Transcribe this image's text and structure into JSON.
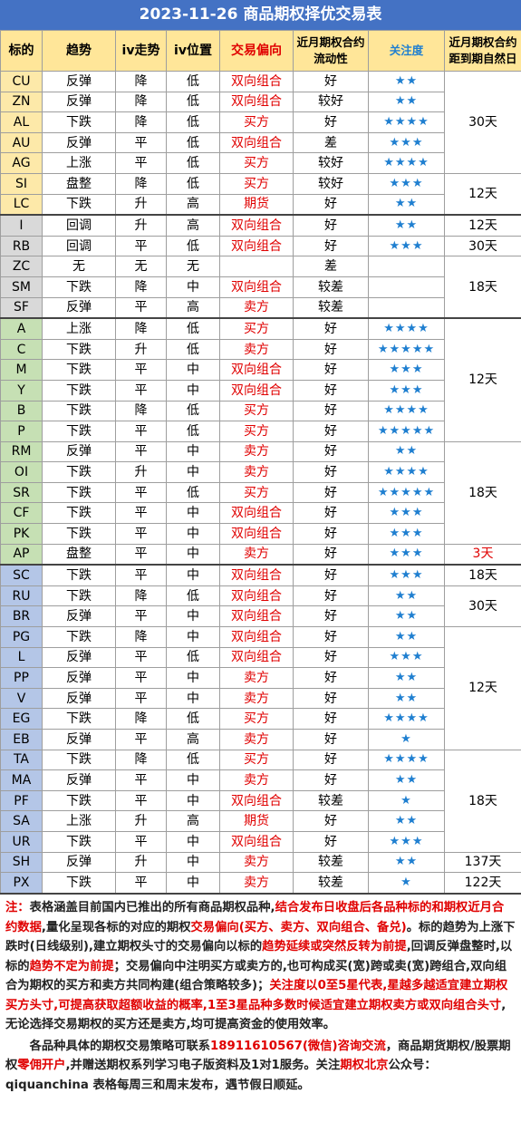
{
  "header": {
    "title": "2023-11-26 商品期权择优交易表"
  },
  "table": {
    "columns": [
      "标的",
      "趋势",
      "iv走势",
      "iv位置",
      "交易偏向",
      "近月期权合约流动性",
      "关注度",
      "近月期权合约距到期自然日"
    ],
    "sections": [
      {
        "color": "#fde9a9",
        "rows": [
          [
            "CU",
            "反弹",
            "降",
            "低",
            "双向组合",
            "好",
            "★★",
            "30天"
          ],
          [
            "ZN",
            "反弹",
            "降",
            "低",
            "双向组合",
            "较好",
            "★★",
            null
          ],
          [
            "AL",
            "下跌",
            "降",
            "低",
            "买方",
            "好",
            "★★★★",
            null
          ],
          [
            "AU",
            "反弹",
            "平",
            "低",
            "双向组合",
            "差",
            "★★★",
            null
          ],
          [
            "AG",
            "上涨",
            "平",
            "低",
            "买方",
            "较好",
            "★★★★",
            null
          ],
          [
            "SI",
            "盘整",
            "降",
            "低",
            "买方",
            "较好",
            "★★★",
            "12天"
          ],
          [
            "LC",
            "下跌",
            "升",
            "高",
            "期货",
            "好",
            "★★",
            null
          ]
        ]
      },
      {
        "color": "#d9d9d9",
        "rows": [
          [
            "I",
            "回调",
            "升",
            "高",
            "双向组合",
            "好",
            "★★",
            "12天"
          ],
          [
            "RB",
            "回调",
            "平",
            "低",
            "双向组合",
            "好",
            "★★★",
            "30天"
          ],
          [
            "ZC",
            "无",
            "无",
            "无",
            null,
            "差",
            null,
            "18天"
          ],
          [
            "SM",
            "下跌",
            "降",
            "中",
            "双向组合",
            "较差",
            null,
            null
          ],
          [
            "SF",
            "反弹",
            "平",
            "高",
            "卖方",
            "较差",
            null,
            null
          ]
        ]
      },
      {
        "color": "#c6e0b4",
        "rows": [
          [
            "A",
            "上涨",
            "降",
            "低",
            "买方",
            "好",
            "★★★★",
            "12天"
          ],
          [
            "C",
            "下跌",
            "升",
            "低",
            "卖方",
            "好",
            "★★★★★",
            null
          ],
          [
            "M",
            "下跌",
            "平",
            "中",
            "双向组合",
            "好",
            "★★★",
            null
          ],
          [
            "Y",
            "下跌",
            "平",
            "中",
            "双向组合",
            "好",
            "★★★",
            null
          ],
          [
            "B",
            "下跌",
            "降",
            "低",
            "买方",
            "好",
            "★★★★",
            null
          ],
          [
            "P",
            "下跌",
            "平",
            "低",
            "买方",
            "好",
            "★★★★★",
            null
          ],
          [
            "RM",
            "反弹",
            "平",
            "中",
            "卖方",
            "好",
            "★★",
            "18天"
          ],
          [
            "OI",
            "下跌",
            "升",
            "中",
            "卖方",
            "好",
            "★★★★",
            null
          ],
          [
            "SR",
            "下跌",
            "平",
            "低",
            "买方",
            "好",
            "★★★★★",
            null
          ],
          [
            "CF",
            "下跌",
            "平",
            "中",
            "双向组合",
            "好",
            "★★★",
            null
          ],
          [
            "PK",
            "下跌",
            "平",
            "中",
            "双向组合",
            "好",
            "★★★",
            null
          ],
          [
            "AP",
            "盘整",
            "平",
            "中",
            "卖方",
            "好",
            "★★★",
            {
              "text": "3天",
              "color": "#e00000"
            }
          ]
        ]
      },
      {
        "color": "#b4c6e7",
        "rows": [
          [
            "SC",
            "下跌",
            "平",
            "中",
            "双向组合",
            "好",
            "★★★",
            "18天"
          ],
          [
            "RU",
            "下跌",
            "降",
            "低",
            "双向组合",
            "好",
            "★★",
            "30天"
          ],
          [
            "BR",
            "反弹",
            "平",
            "中",
            "双向组合",
            "好",
            "★★",
            null
          ],
          [
            "PG",
            "下跌",
            "降",
            "中",
            "双向组合",
            "好",
            "★★",
            "12天"
          ],
          [
            "L",
            "反弹",
            "平",
            "低",
            "双向组合",
            "好",
            "★★★",
            null
          ],
          [
            "PP",
            "反弹",
            "平",
            "中",
            "卖方",
            "好",
            "★★",
            null
          ],
          [
            "V",
            "反弹",
            "平",
            "中",
            "卖方",
            "好",
            "★★",
            null
          ],
          [
            "EG",
            "下跌",
            "降",
            "低",
            "买方",
            "好",
            "★★★★",
            null
          ],
          [
            "EB",
            "反弹",
            "平",
            "高",
            "卖方",
            "好",
            "★",
            null
          ],
          [
            "TA",
            "下跌",
            "降",
            "低",
            "买方",
            "好",
            "★★★★",
            "18天"
          ],
          [
            "MA",
            "反弹",
            "平",
            "中",
            "卖方",
            "好",
            "★★",
            null
          ],
          [
            "PF",
            "下跌",
            "平",
            "中",
            "双向组合",
            "较差",
            "★",
            null
          ],
          [
            "SA",
            "上涨",
            "升",
            "高",
            "期货",
            "好",
            "★★",
            null
          ],
          [
            "UR",
            "下跌",
            "平",
            "中",
            "双向组合",
            "好",
            "★★★",
            null
          ],
          [
            "SH",
            "反弹",
            "升",
            "中",
            "卖方",
            "较差",
            "★★",
            "137天"
          ],
          [
            "PX",
            "下跌",
            "平",
            "中",
            "卖方",
            "较差",
            "★",
            "122天"
          ]
        ]
      }
    ]
  },
  "notes": [
    [
      {
        "text": "注：",
        "color": "#e00000"
      },
      {
        "text": "表格涵盖目前国内已推出的所有商品期权品种,"
      },
      {
        "text": "结合发布日收盘后各品种标的和期权近月合约数据",
        "color": "#e00000"
      },
      {
        "text": ",量化呈现各标的对应的期权"
      },
      {
        "text": "交易偏向(买方、卖方、双向组合、备兑)",
        "color": "#e00000"
      },
      {
        "text": "。标的趋势为上涨下跌时(日线级别),建立期权头寸的交易偏向以标的"
      },
      {
        "text": "趋势延续或突然反转为前提",
        "color": "#e00000"
      },
      {
        "text": ",回调反弹盘整时,以标的"
      },
      {
        "text": "趋势不定为前提",
        "color": "#e00000"
      },
      {
        "text": "；交易偏向中注明买方或卖方的,也可构成买(宽)跨或卖(宽)跨组合,双向组合为期权的买方和卖方共同构建(组合策略较多)；"
      },
      {
        "text": "关注度以0至5星代表,星越多越适宜建立期权买方头寸,可提高获取超额收益的概率,1至3星品种多数时候适宜建立期权卖方或双向组合头寸",
        "color": "#e00000"
      },
      {
        "text": ",无论选择交易期权的买方还是卖方,均可提高资金的使用效率。"
      }
    ],
    [
      {
        "text": "各品种具体的期权交易策略可联系"
      },
      {
        "text": "18911610567(微信)咨询交流",
        "color": "#e00000"
      },
      {
        "text": "，商品期货期权/股票期权"
      },
      {
        "text": "零佣开户",
        "color": "#e00000"
      },
      {
        "text": ",并赠送期权系列学习电子版资料及1对1服务。关注"
      },
      {
        "text": "期权北京",
        "color": "#e00000"
      },
      {
        "text": "公众号：qiquanchina 表格每周三和周末发布，遇节假日顺延。"
      }
    ]
  ]
}
